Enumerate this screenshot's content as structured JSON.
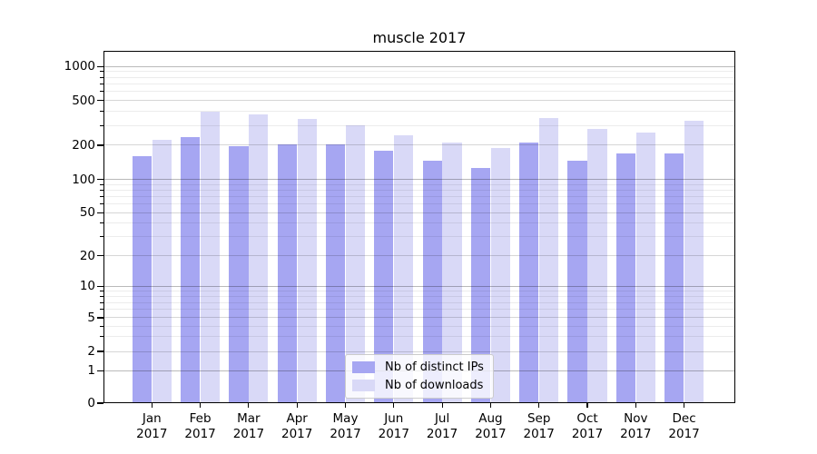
{
  "chart_data": {
    "type": "bar",
    "title": "muscle 2017",
    "x_tick_months": [
      "Jan",
      "Feb",
      "Mar",
      "Apr",
      "May",
      "Jun",
      "Jul",
      "Aug",
      "Sep",
      "Oct",
      "Nov",
      "Dec"
    ],
    "x_tick_year": "2017",
    "categories": [
      "Jan 2017",
      "Feb 2017",
      "Mar 2017",
      "Apr 2017",
      "May 2017",
      "Jun 2017",
      "Jul 2017",
      "Aug 2017",
      "Sep 2017",
      "Oct 2017",
      "Nov 2017",
      "Dec 2017"
    ],
    "series": [
      {
        "name": "Nb of distinct IPs",
        "color": "#a6a6f2",
        "values": [
          160,
          235,
          195,
          205,
          205,
          180,
          145,
          127,
          210,
          145,
          170,
          170
        ]
      },
      {
        "name": "Nb of downloads",
        "color": "#d9d9f7",
        "values": [
          225,
          400,
          375,
          340,
          300,
          245,
          210,
          190,
          350,
          280,
          260,
          330
        ]
      }
    ],
    "yscale": "symlog",
    "yticks": [
      0,
      1,
      2,
      5,
      10,
      20,
      50,
      100,
      200,
      500,
      1000
    ],
    "ylim": [
      0,
      1365
    ],
    "grid": true,
    "legend_position": "lower center"
  }
}
